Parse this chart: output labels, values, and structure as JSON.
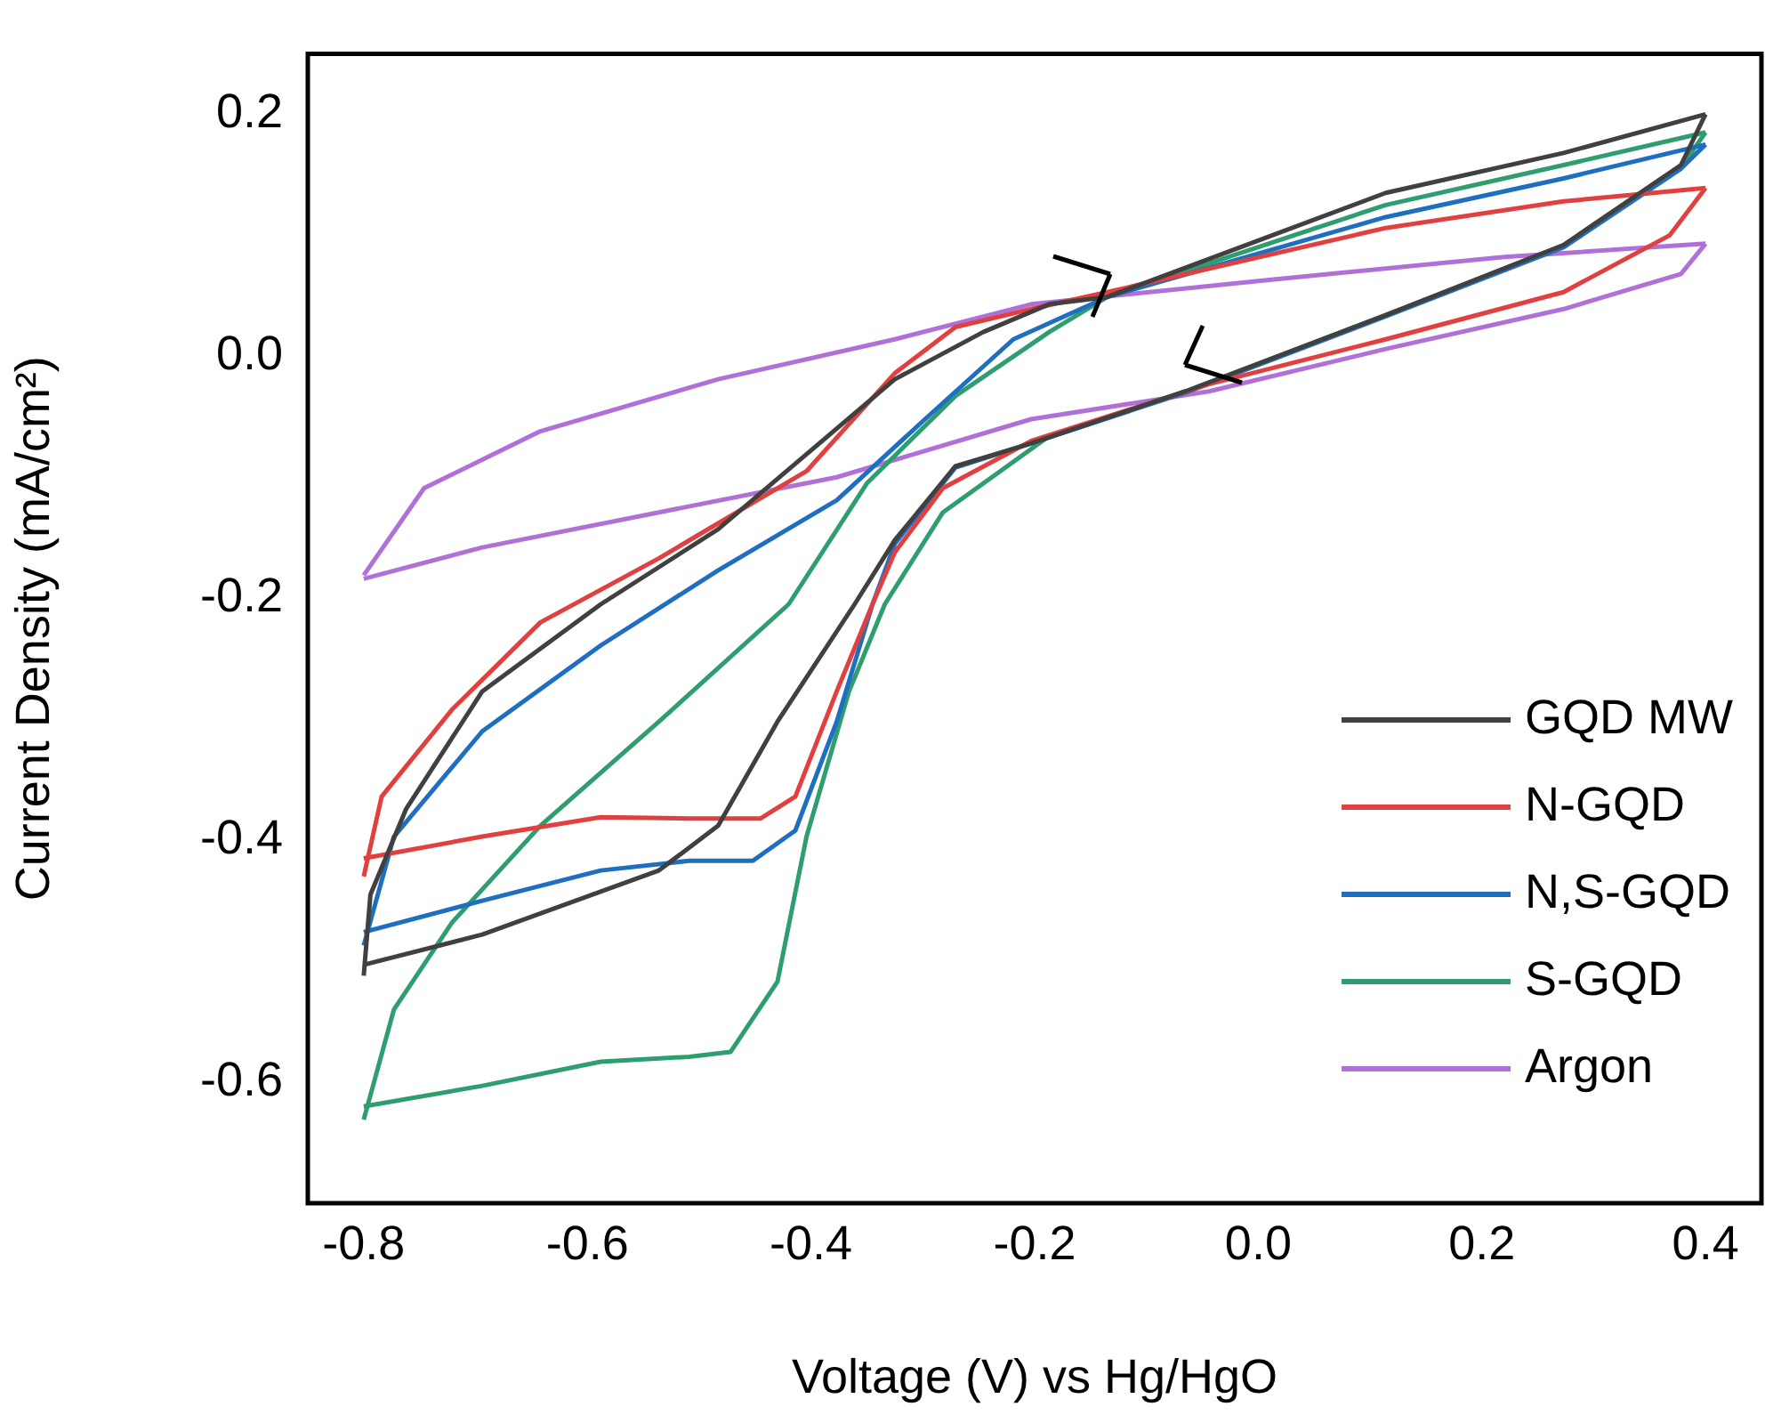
{
  "chart_data": {
    "type": "line",
    "xlabel": "Voltage (V) vs Hg/HgO",
    "ylabel": "Current Density (mA/cm²)",
    "xlim": [
      -0.85,
      0.45
    ],
    "ylim": [
      -0.7,
      0.25
    ],
    "xticks": [
      -0.8,
      -0.6,
      -0.4,
      -0.2,
      {
        "value": 0,
        "label": "0.0"
      },
      0.2,
      0.4
    ],
    "yticks": [
      -0.6,
      -0.4,
      -0.2,
      {
        "value": 0,
        "label": "0.0"
      },
      0.2
    ],
    "legend": "bottom right",
    "series": [
      {
        "name": "GQD MW",
        "color": "#404040",
        "x": [
          -0.8,
          -0.794,
          -0.762,
          -0.694,
          -0.588,
          -0.483,
          -0.404,
          -0.325,
          -0.246,
          -0.187,
          -0.135,
          0.114,
          0.273,
          0.4
        ],
        "values": [
          -0.512,
          -0.445,
          -0.374,
          -0.277,
          -0.205,
          -0.143,
          -0.081,
          -0.019,
          0.02,
          0.043,
          0.049,
          0.135,
          0.168,
          0.2
        ]
      },
      {
        "color": "#404040",
        "x": [
          0.4,
          0.378,
          0.273,
          0.114,
          -0.065,
          -0.203,
          -0.271,
          -0.325,
          -0.361,
          -0.43,
          -0.483,
          -0.536,
          -0.694,
          -0.8
        ],
        "values": [
          0.2,
          0.158,
          0.092,
          0.034,
          -0.029,
          -0.072,
          -0.091,
          -0.152,
          -0.205,
          -0.302,
          -0.388,
          -0.425,
          -0.478,
          -0.503
        ]
      },
      {
        "name": "N-GQD",
        "color": "#e04040",
        "x": [
          -0.8,
          -0.784,
          -0.721,
          -0.642,
          -0.536,
          -0.404,
          -0.325,
          -0.271,
          -0.203,
          -0.135,
          0.114,
          0.273,
          0.4
        ],
        "values": [
          -0.43,
          -0.364,
          -0.292,
          -0.22,
          -0.167,
          -0.095,
          -0.014,
          0.024,
          0.039,
          0.053,
          0.106,
          0.128,
          0.139
        ]
      },
      {
        "color": "#e04040",
        "x": [
          0.4,
          0.368,
          0.273,
          0.114,
          -0.044,
          -0.203,
          -0.282,
          -0.325,
          -0.345,
          -0.377,
          -0.414,
          -0.445,
          -0.509,
          -0.588,
          -0.694,
          -0.8
        ],
        "values": [
          0.139,
          0.1,
          0.053,
          0.014,
          -0.023,
          -0.07,
          -0.109,
          -0.162,
          -0.205,
          -0.277,
          -0.364,
          -0.382,
          -0.382,
          -0.381,
          -0.397,
          -0.415
        ]
      },
      {
        "name": "N,S-GQD",
        "color": "#1e6fc0",
        "x": [
          -0.8,
          -0.773,
          -0.694,
          -0.588,
          -0.483,
          -0.377,
          -0.298,
          -0.219,
          -0.135,
          0.114,
          0.273,
          0.4
        ],
        "values": [
          -0.487,
          -0.397,
          -0.31,
          -0.239,
          -0.177,
          -0.119,
          -0.052,
          0.014,
          0.049,
          0.115,
          0.147,
          0.175
        ]
      },
      {
        "color": "#1e6fc0",
        "x": [
          0.4,
          0.378,
          0.273,
          0.114,
          -0.065,
          -0.203,
          -0.271,
          -0.325,
          -0.345,
          -0.377,
          -0.414,
          -0.452,
          -0.509,
          -0.588,
          -0.694,
          -0.8
        ],
        "values": [
          0.175,
          0.155,
          0.09,
          0.033,
          -0.03,
          -0.072,
          -0.092,
          -0.155,
          -0.205,
          -0.302,
          -0.392,
          -0.417,
          -0.417,
          -0.425,
          -0.45,
          -0.476
        ]
      },
      {
        "name": "S-GQD",
        "color": "#2e9e6e",
        "x": [
          -0.8,
          -0.773,
          -0.721,
          -0.642,
          -0.536,
          -0.42,
          -0.35,
          -0.271,
          -0.187,
          -0.135,
          0.114,
          0.273,
          0.4
        ],
        "values": [
          -0.631,
          -0.54,
          -0.468,
          -0.388,
          -0.302,
          -0.205,
          -0.105,
          -0.033,
          0.02,
          0.049,
          0.125,
          0.158,
          0.185
        ]
      },
      {
        "color": "#2e9e6e",
        "x": [
          0.4,
          0.378,
          0.273,
          0.114,
          -0.065,
          -0.187,
          -0.282,
          -0.334,
          -0.366,
          -0.404,
          -0.43,
          -0.472,
          -0.509,
          -0.588,
          -0.694,
          -0.8
        ],
        "values": [
          0.185,
          0.156,
          0.091,
          0.034,
          -0.029,
          -0.066,
          -0.129,
          -0.205,
          -0.277,
          -0.397,
          -0.517,
          -0.575,
          -0.579,
          -0.583,
          -0.603,
          -0.62
        ]
      },
      {
        "name": "Argon",
        "color": "#b070d8",
        "x": [
          -0.8,
          -0.746,
          -0.642,
          -0.483,
          -0.325,
          -0.203,
          0.008,
          0.22,
          0.4
        ],
        "values": [
          -0.181,
          -0.109,
          -0.062,
          -0.019,
          0.014,
          0.043,
          0.063,
          0.082,
          0.093
        ]
      },
      {
        "color": "#b070d8",
        "x": [
          0.4,
          0.378,
          0.273,
          0.114,
          -0.044,
          -0.203,
          -0.377,
          -0.536,
          -0.694,
          -0.8
        ],
        "values": [
          0.093,
          0.068,
          0.039,
          0.006,
          -0.029,
          -0.052,
          -0.1,
          -0.129,
          -0.158,
          -0.184
        ]
      }
    ]
  }
}
